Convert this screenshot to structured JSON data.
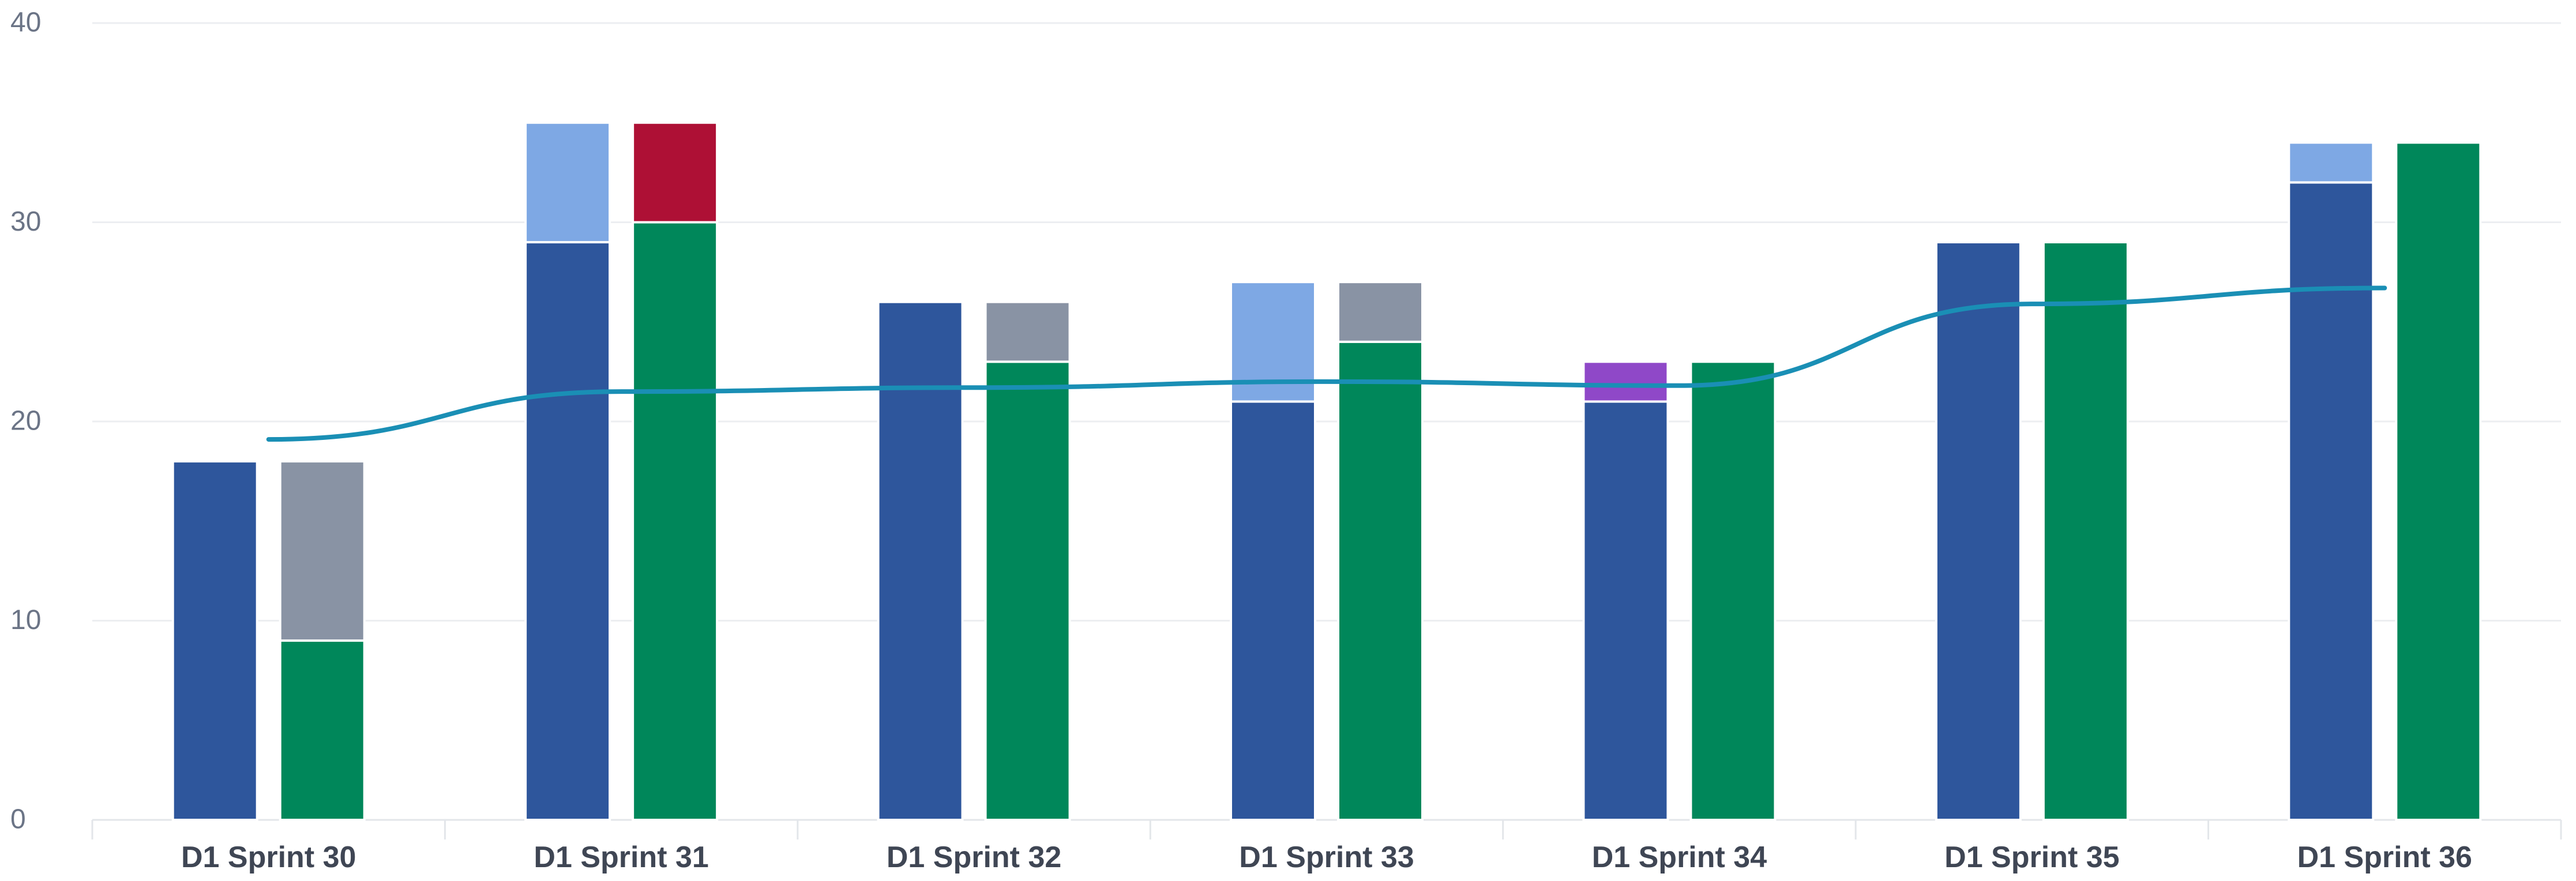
{
  "colors": {
    "committed_base": "#2e569c",
    "committed_added": "#7ea8e4",
    "completed": "#00875a",
    "not_completed": "#8993a4",
    "removed": "#ae1035",
    "added_purple": "#8f48c8",
    "trend": "#1a8fb5"
  },
  "chart_data": {
    "type": "bar",
    "categories": [
      "D1 Sprint 30",
      "D1 Sprint 31",
      "D1 Sprint 32",
      "D1 Sprint 33",
      "D1 Sprint 34",
      "D1 Sprint 35",
      "D1 Sprint 36"
    ],
    "ylim": [
      0,
      40
    ],
    "yticks": [
      "0",
      "10",
      "20",
      "30",
      "40"
    ],
    "grid": true,
    "title": "",
    "xlabel": "",
    "ylabel": "",
    "bar_groups": [
      {
        "left": [
          {
            "value": 18,
            "color": "committed_base"
          }
        ],
        "right": [
          {
            "value": 9,
            "color": "completed"
          },
          {
            "value": 9,
            "color": "not_completed"
          }
        ]
      },
      {
        "left": [
          {
            "value": 29,
            "color": "committed_base"
          },
          {
            "value": 6,
            "color": "committed_added"
          }
        ],
        "right": [
          {
            "value": 30,
            "color": "completed"
          },
          {
            "value": 5,
            "color": "removed"
          }
        ]
      },
      {
        "left": [
          {
            "value": 26,
            "color": "committed_base"
          }
        ],
        "right": [
          {
            "value": 23,
            "color": "completed"
          },
          {
            "value": 3,
            "color": "not_completed"
          }
        ]
      },
      {
        "left": [
          {
            "value": 21,
            "color": "committed_base"
          },
          {
            "value": 6,
            "color": "committed_added"
          }
        ],
        "right": [
          {
            "value": 24,
            "color": "completed"
          },
          {
            "value": 3,
            "color": "not_completed"
          }
        ]
      },
      {
        "left": [
          {
            "value": 21,
            "color": "committed_base"
          },
          {
            "value": 2,
            "color": "added_purple"
          }
        ],
        "right": [
          {
            "value": 23,
            "color": "completed"
          }
        ]
      },
      {
        "left": [
          {
            "value": 29,
            "color": "committed_base"
          }
        ],
        "right": [
          {
            "value": 29,
            "color": "completed"
          }
        ]
      },
      {
        "left": [
          {
            "value": 32,
            "color": "committed_base"
          },
          {
            "value": 2,
            "color": "committed_added"
          }
        ],
        "right": [
          {
            "value": 34,
            "color": "completed"
          }
        ]
      }
    ],
    "trend_line": [
      19.1,
      21.5,
      21.7,
      22.0,
      21.8,
      25.9,
      26.7
    ]
  }
}
